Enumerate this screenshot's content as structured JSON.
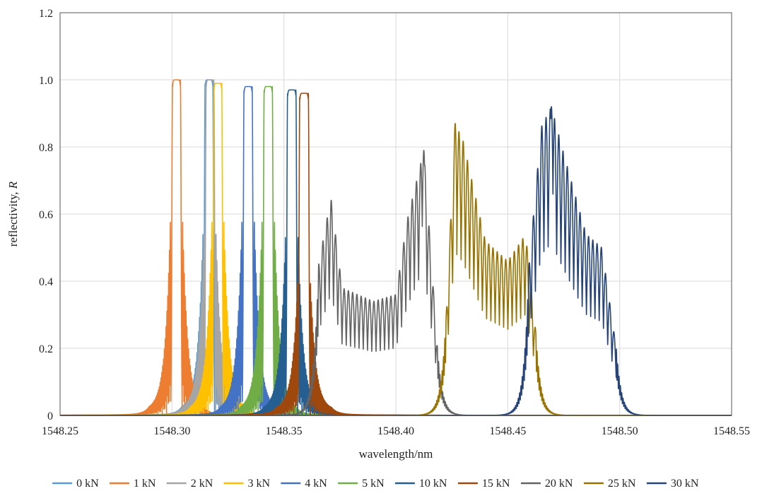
{
  "chart_data": {
    "type": "line",
    "title": "",
    "xlabel": "wavelength/nm",
    "ylabel_main": "reflectivity, ",
    "ylabel_italic": "R",
    "xlim": [
      1548.25,
      1548.55
    ],
    "ylim": [
      0,
      1.2
    ],
    "xticks": [
      "1548.25",
      "1548.30",
      "1548.35",
      "1548.40",
      "1548.45",
      "1548.50",
      "1548.55"
    ],
    "yticks": [
      "0",
      "0.2",
      "0.4",
      "0.6",
      "0.8",
      "1.0",
      "1.2"
    ],
    "grid": true,
    "legend_position": "bottom",
    "series": [
      {
        "name": "0 kN",
        "color": "#5b9bd5",
        "kind": "uniform",
        "center": 1548.3165,
        "width": 0.0034,
        "peak": 1.0,
        "side": 0.56
      },
      {
        "name": "1 kN",
        "color": "#ed7d31",
        "kind": "uniform",
        "center": 1548.302,
        "width": 0.0035,
        "peak": 1.0,
        "side": 0.6
      },
      {
        "name": "2 kN",
        "color": "#a5a5a5",
        "kind": "uniform",
        "center": 1548.317,
        "width": 0.0034,
        "peak": 1.0,
        "side": 0.56
      },
      {
        "name": "3 kN",
        "color": "#ffc000",
        "kind": "uniform",
        "center": 1548.3205,
        "width": 0.0034,
        "peak": 0.99,
        "side": 0.6
      },
      {
        "name": "4 kN",
        "color": "#4472c4",
        "kind": "uniform",
        "center": 1548.334,
        "width": 0.0036,
        "peak": 0.98,
        "side": 0.6
      },
      {
        "name": "5 kN",
        "color": "#70ad47",
        "kind": "uniform",
        "center": 1548.343,
        "width": 0.0036,
        "peak": 0.98,
        "side": 0.6
      },
      {
        "name": "10 kN",
        "color": "#255e91",
        "kind": "uniform",
        "center": 1548.3535,
        "width": 0.0037,
        "peak": 0.97,
        "side": 0.55
      },
      {
        "name": "15 kN",
        "color": "#9e480e",
        "kind": "uniform",
        "center": 1548.359,
        "width": 0.0038,
        "peak": 0.96,
        "side": 0.4
      },
      {
        "name": "20 kN",
        "color": "#636363",
        "kind": "chirped",
        "start": 1548.3655,
        "end": 1548.4185,
        "peak_x": 1548.4125,
        "peak": 0.79,
        "env": [
          [
            1548.3655,
            0.45
          ],
          [
            1548.371,
            0.65
          ],
          [
            1548.376,
            0.38
          ],
          [
            1548.39,
            0.34
          ],
          [
            1548.4,
            0.36
          ],
          [
            1548.405,
            0.58
          ],
          [
            1548.4125,
            0.79
          ],
          [
            1548.4185,
            0.21
          ]
        ]
      },
      {
        "name": "25 kN",
        "color": "#997300",
        "kind": "chirped",
        "start": 1548.4225,
        "end": 1548.4625,
        "peak_x": 1548.4265,
        "peak": 0.87,
        "env": [
          [
            1548.4225,
            0.3
          ],
          [
            1548.4265,
            0.87
          ],
          [
            1548.43,
            0.82
          ],
          [
            1548.44,
            0.52
          ],
          [
            1548.45,
            0.46
          ],
          [
            1548.458,
            0.54
          ],
          [
            1548.4625,
            0.25
          ]
        ]
      },
      {
        "name": "30 kN",
        "color": "#264478",
        "kind": "chirped",
        "start": 1548.4595,
        "end": 1548.4985,
        "peak_x": 1548.4695,
        "peak": 0.92,
        "env": [
          [
            1548.4595,
            0.45
          ],
          [
            1548.465,
            0.86
          ],
          [
            1548.4695,
            0.92
          ],
          [
            1548.475,
            0.78
          ],
          [
            1548.485,
            0.54
          ],
          [
            1548.492,
            0.5
          ],
          [
            1548.4985,
            0.2
          ]
        ]
      }
    ]
  }
}
